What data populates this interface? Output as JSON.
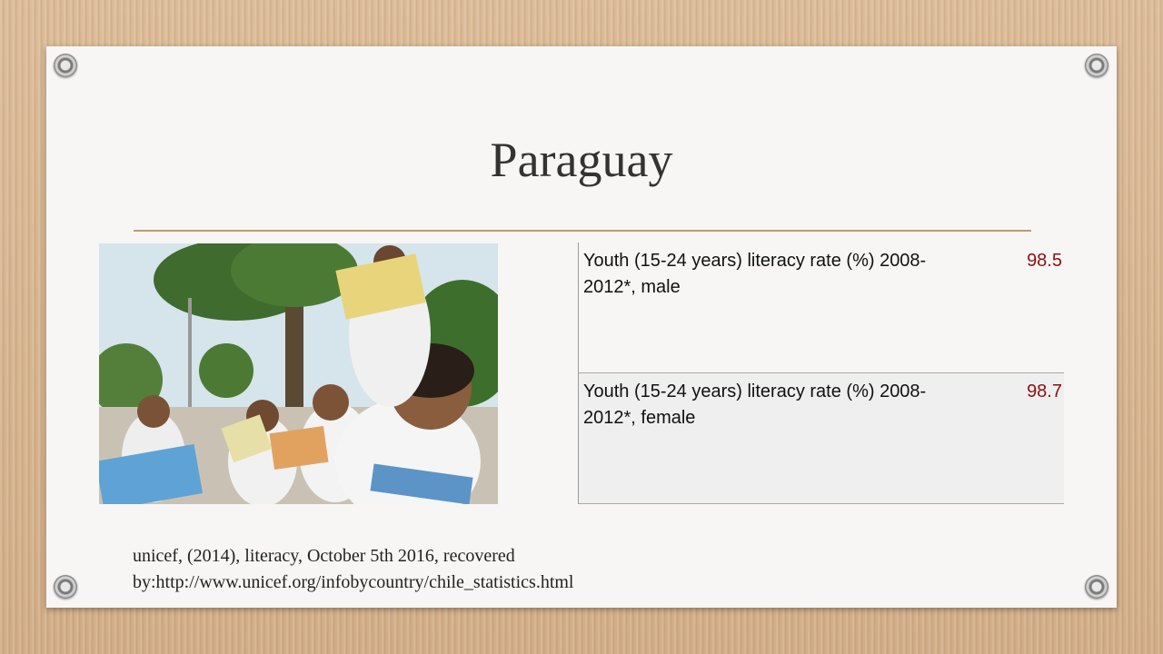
{
  "slide": {
    "title": "Paraguay",
    "table": {
      "rows": [
        {
          "label": "Youth (15-24 years) literacy rate (%) 2008-2012*, male",
          "value": "98.5"
        },
        {
          "label": "Youth (15-24 years) literacy rate (%) 2008-2012*, female",
          "value": "98.7"
        }
      ]
    },
    "citation": {
      "line1": "unicef, (2014), literacy, October 5th 2016, recovered",
      "line2": "by:http://www.unicef.org/infobycountry/chile_statistics.html"
    },
    "colors": {
      "value_text": "#8b1010",
      "divider": "#c49a6c"
    }
  }
}
